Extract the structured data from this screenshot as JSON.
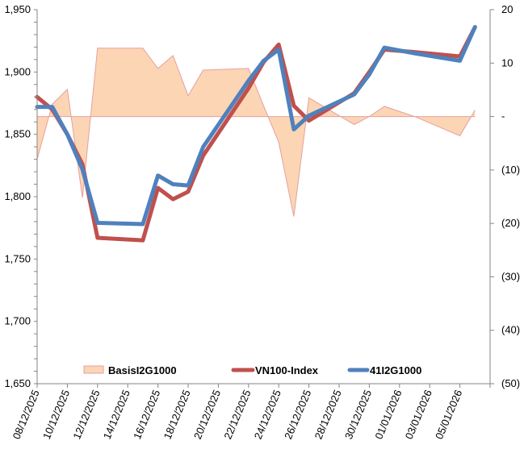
{
  "chart_data": {
    "type": "line",
    "title": "",
    "x": [
      "08/12/2025",
      "09/12/2025",
      "10/12/2025",
      "11/12/2025",
      "12/12/2025",
      "15/12/2025",
      "16/12/2025",
      "17/12/2025",
      "18/12/2025",
      "19/12/2025",
      "22/12/2025",
      "23/12/2025",
      "24/12/2025",
      "25/12/2025",
      "26/12/2025",
      "29/12/2025",
      "30/12/2025",
      "31/12/2025",
      "02/01/2026",
      "05/01/2026",
      "06/01/2026"
    ],
    "day_index": [
      0,
      1,
      2,
      3,
      4,
      7,
      8,
      9,
      10,
      11,
      14,
      15,
      16,
      17,
      18,
      21,
      22,
      23,
      25,
      28,
      29
    ],
    "x_tick_labels": [
      "08/12/2025",
      "10/12/2025",
      "12/12/2025",
      "14/12/2025",
      "16/12/2025",
      "18/12/2025",
      "20/12/2025",
      "22/12/2025",
      "24/12/2025",
      "26/12/2025",
      "28/12/2025",
      "30/12/2025",
      "01/01/2026",
      "03/01/2026",
      "05/01/2026"
    ],
    "y_left": {
      "ylim": [
        1650,
        1950
      ],
      "tick_labels": [
        "1,650",
        "1,700",
        "1,750",
        "1,800",
        "1,850",
        "1,900",
        "1,950"
      ],
      "ticks": [
        1650,
        1700,
        1750,
        1800,
        1850,
        1900,
        1950
      ]
    },
    "y_right": {
      "ylim": [
        -50,
        20
      ],
      "tick_labels": [
        "(50)",
        "(40)",
        "(30)",
        "(20)",
        "(10)",
        "-",
        "10",
        "20"
      ],
      "ticks": [
        -50,
        -40,
        -30,
        -20,
        -10,
        0,
        10,
        20
      ]
    },
    "grid": false,
    "legend_position": "bottom-inside",
    "series": [
      {
        "name": "BasisI2G1000",
        "kind": "area",
        "axis": "right",
        "color": "#FCD5B4",
        "stroke": "#E6A0A0",
        "values": [
          -8.0,
          2.3,
          5.1,
          -15.2,
          12.8,
          12.8,
          9.0,
          11.4,
          3.9,
          8.7,
          9.0,
          2.0,
          -4.8,
          -18.7,
          3.5,
          -1.5,
          0.0,
          1.9,
          0.0,
          -3.6,
          1.2
        ]
      },
      {
        "name": "VN100-Index",
        "kind": "line",
        "axis": "left",
        "color": "#C0504D",
        "values": [
          1880,
          1870,
          1850,
          1826,
          1767,
          1765,
          1807,
          1798,
          1804,
          1833,
          1887,
          1908,
          1922,
          1873,
          1861,
          1883,
          1900,
          1918,
          1916,
          1912.5,
          1936
        ]
      },
      {
        "name": "41I2G1000",
        "kind": "line",
        "axis": "left",
        "color": "#4F81BD",
        "values": [
          1872,
          1872,
          1850,
          1822,
          1779,
          1778,
          1817,
          1810,
          1809,
          1840,
          1893,
          1909,
          1918,
          1854,
          1865,
          1882,
          1898,
          1919.6,
          1915,
          1909,
          1936
        ]
      }
    ]
  }
}
